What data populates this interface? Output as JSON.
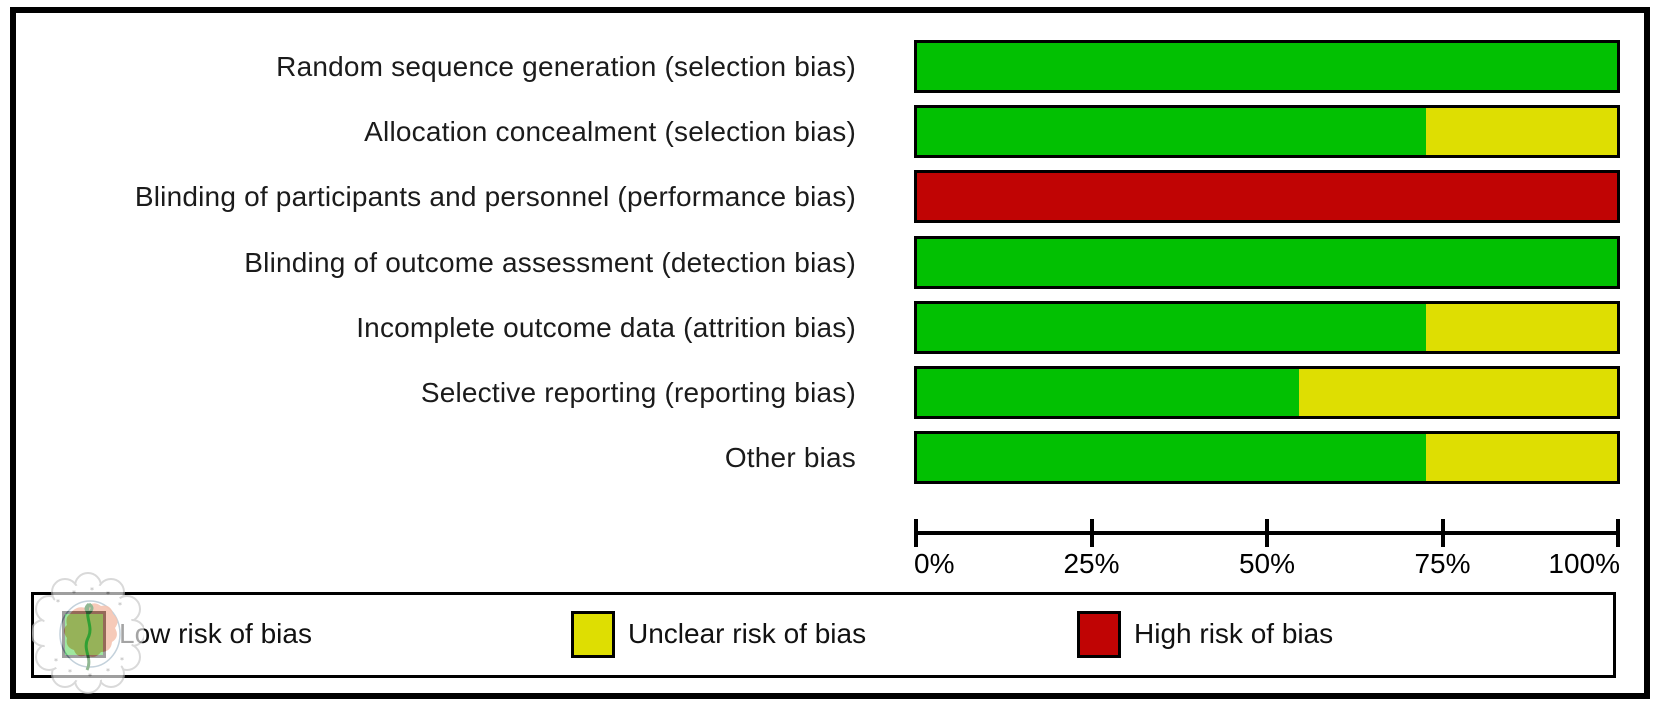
{
  "chart_data": {
    "type": "bar",
    "orientation": "horizontal",
    "stacked": true,
    "title": "",
    "xlabel": "",
    "ylabel": "",
    "xlim": [
      0,
      100
    ],
    "grid": false,
    "legend_position": "bottom",
    "categories": [
      "Random sequence generation (selection bias)",
      "Allocation concealment (selection bias)",
      "Blinding of participants and personnel (performance bias)",
      "Blinding of outcome assessment (detection bias)",
      "Incomplete outcome data (attrition bias)",
      "Selective reporting (reporting bias)",
      "Other bias"
    ],
    "series": [
      {
        "name": "Low risk of bias",
        "color": "#02c002",
        "values": [
          100,
          72.7,
          0,
          100,
          72.7,
          54.5,
          72.7
        ]
      },
      {
        "name": "Unclear risk of bias",
        "color": "#dede02",
        "values": [
          0,
          27.3,
          0,
          0,
          27.3,
          45.5,
          27.3
        ]
      },
      {
        "name": "High risk of bias",
        "color": "#c00404",
        "values": [
          0,
          0,
          100,
          0,
          0,
          0,
          0
        ]
      }
    ],
    "x_ticks": {
      "labels": [
        "0%",
        "25%",
        "50%",
        "75%",
        "100%"
      ],
      "positions": [
        0,
        25,
        50,
        75,
        100
      ]
    }
  },
  "legend": {
    "items": [
      {
        "label": "Low risk of bias",
        "color": "#02c002"
      },
      {
        "label": "Unclear risk of bias",
        "color": "#dede02"
      },
      {
        "label": "High risk of bias",
        "color": "#c00404"
      }
    ]
  },
  "watermark": {
    "label": "university-seal"
  },
  "colors": {
    "border": "#000000",
    "background": "#ffffff",
    "text": "#1b1b1b"
  }
}
